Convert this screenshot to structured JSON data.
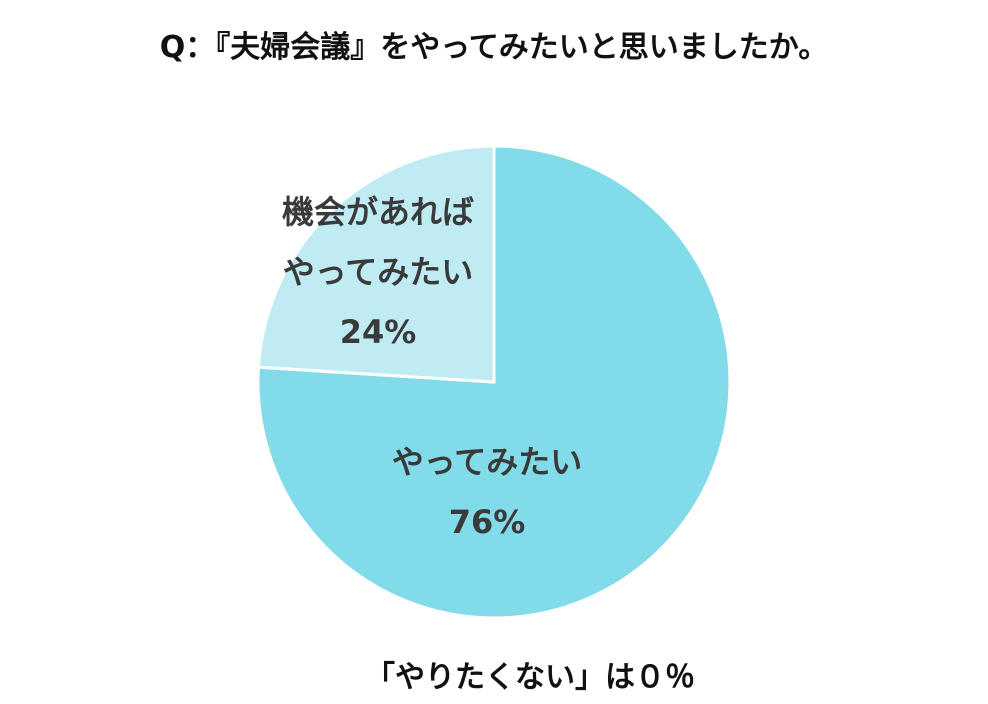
{
  "chart_data": {
    "type": "pie",
    "title": "Q：『夫婦会議』をやってみたいと思いましたか。",
    "categories": [
      "やってみたい",
      "機会があれば\nやってみたい"
    ],
    "values": [
      76,
      24
    ],
    "value_labels": [
      "76%",
      "24%"
    ],
    "colors": [
      "#82dbe8",
      "#bfecf3"
    ],
    "annotation": "「やりたくない」は０％"
  }
}
